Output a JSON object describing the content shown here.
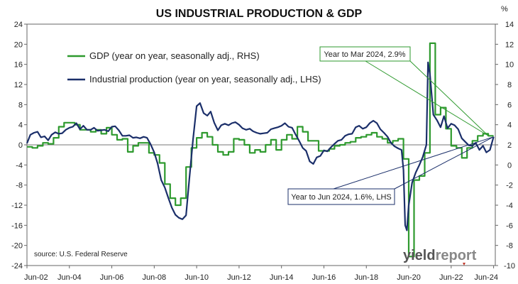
{
  "chart_data": {
    "type": "line",
    "title": "US INDUSTRIAL PRODUCTION & GDP",
    "right_unit": "%",
    "source": "source: U.S. Federal Reserve",
    "logo": {
      "part1": "yield",
      "part2": "report"
    },
    "x_tick_labels": [
      "Jun-02",
      "Jun-04",
      "Jun-06",
      "Jun-08",
      "Jun-10",
      "Jun-12",
      "Jun-14",
      "Jun-16",
      "Jun-18",
      "Jun-20",
      "Jun-22",
      "Jun-24"
    ],
    "xlim": [
      2002.42,
      2024.5
    ],
    "left_axis": {
      "ylim": [
        -24,
        24
      ],
      "ticks": [
        24,
        20,
        16,
        12,
        8,
        4,
        0,
        -4,
        -8,
        -12,
        -16,
        -20,
        -24
      ]
    },
    "right_axis": {
      "ylim": [
        -10,
        14
      ],
      "ticks": [
        14,
        12,
        10,
        8,
        6,
        4,
        2,
        0,
        -2,
        -4,
        -6,
        -8,
        -10
      ]
    },
    "grid": false,
    "legend_position": "top-left",
    "series": [
      {
        "name": "GDP (year on year, seasonally adj., RHS)",
        "axis": "right",
        "color": "#2e9a2e",
        "step": true,
        "x": [
          2002.42,
          2002.67,
          2002.92,
          2003.17,
          2003.42,
          2003.67,
          2003.92,
          2004.17,
          2004.42,
          2004.67,
          2004.92,
          2005.17,
          2005.42,
          2005.67,
          2005.92,
          2006.17,
          2006.42,
          2006.67,
          2006.92,
          2007.17,
          2007.42,
          2007.67,
          2007.92,
          2008.17,
          2008.42,
          2008.67,
          2008.92,
          2009.17,
          2009.42,
          2009.67,
          2009.92,
          2010.17,
          2010.42,
          2010.67,
          2010.92,
          2011.17,
          2011.42,
          2011.67,
          2011.92,
          2012.17,
          2012.42,
          2012.67,
          2012.92,
          2013.17,
          2013.42,
          2013.67,
          2013.92,
          2014.17,
          2014.42,
          2014.67,
          2014.92,
          2015.17,
          2015.42,
          2015.67,
          2015.92,
          2016.17,
          2016.42,
          2016.67,
          2016.92,
          2017.17,
          2017.42,
          2017.67,
          2017.92,
          2018.17,
          2018.42,
          2018.67,
          2018.92,
          2019.17,
          2019.42,
          2019.67,
          2019.92,
          2020.17,
          2020.42,
          2020.67,
          2020.92,
          2021.17,
          2021.42,
          2021.67,
          2021.92,
          2022.17,
          2022.42,
          2022.67,
          2022.92,
          2023.17,
          2023.42,
          2023.67,
          2023.92,
          2024.17
        ],
        "values": [
          1.8,
          1.7,
          1.9,
          2.2,
          2.1,
          2.7,
          3.8,
          4.2,
          4.2,
          4.0,
          3.5,
          3.5,
          3.3,
          3.5,
          3.1,
          3.7,
          3.0,
          2.5,
          2.6,
          1.3,
          1.9,
          2.2,
          2.2,
          1.2,
          1.0,
          0.2,
          -1.9,
          -3.3,
          -4.0,
          -3.3,
          -0.2,
          1.7,
          2.7,
          3.2,
          2.8,
          2.0,
          1.3,
          1.0,
          1.3,
          2.6,
          2.5,
          2.0,
          1.2,
          1.5,
          1.3,
          2.0,
          2.5,
          1.5,
          2.5,
          3.0,
          2.6,
          3.8,
          3.3,
          2.4,
          2.4,
          1.4,
          1.4,
          1.6,
          1.9,
          2.0,
          2.2,
          2.3,
          2.7,
          2.8,
          3.0,
          3.2,
          2.8,
          2.6,
          2.2,
          2.4,
          2.6,
          0.6,
          -9.1,
          -1.5,
          -1.1,
          1.2,
          12.1,
          5.0,
          5.7,
          3.6,
          1.9,
          1.7,
          0.7,
          1.7,
          2.4,
          2.9,
          3.1,
          2.9
        ]
      },
      {
        "name": "Industrial production (year on year, seasonally adj., LHS)",
        "axis": "left",
        "color": "#1b2f6a",
        "step": false,
        "x": [
          2002.42,
          2002.58,
          2002.75,
          2002.92,
          2003.08,
          2003.25,
          2003.42,
          2003.58,
          2003.75,
          2003.92,
          2004.08,
          2004.25,
          2004.42,
          2004.58,
          2004.75,
          2004.92,
          2005.08,
          2005.25,
          2005.42,
          2005.58,
          2005.75,
          2005.92,
          2006.08,
          2006.25,
          2006.42,
          2006.58,
          2006.75,
          2006.92,
          2007.08,
          2007.25,
          2007.42,
          2007.58,
          2007.75,
          2007.92,
          2008.08,
          2008.25,
          2008.42,
          2008.58,
          2008.75,
          2008.92,
          2009.08,
          2009.25,
          2009.42,
          2009.58,
          2009.75,
          2009.92,
          2010.08,
          2010.25,
          2010.42,
          2010.58,
          2010.75,
          2010.92,
          2011.08,
          2011.25,
          2011.42,
          2011.58,
          2011.75,
          2011.92,
          2012.08,
          2012.25,
          2012.42,
          2012.58,
          2012.75,
          2012.92,
          2013.08,
          2013.25,
          2013.42,
          2013.58,
          2013.75,
          2013.92,
          2014.08,
          2014.25,
          2014.42,
          2014.58,
          2014.75,
          2014.92,
          2015.08,
          2015.25,
          2015.42,
          2015.58,
          2015.75,
          2015.92,
          2016.08,
          2016.25,
          2016.42,
          2016.58,
          2016.75,
          2016.92,
          2017.08,
          2017.25,
          2017.42,
          2017.58,
          2017.75,
          2017.92,
          2018.08,
          2018.25,
          2018.42,
          2018.58,
          2018.75,
          2018.92,
          2019.08,
          2019.25,
          2019.42,
          2019.58,
          2019.75,
          2019.92,
          2020.08,
          2020.17,
          2020.25,
          2020.33,
          2020.42,
          2020.58,
          2020.75,
          2020.92,
          2021.08,
          2021.25,
          2021.33,
          2021.42,
          2021.58,
          2021.75,
          2021.92,
          2022.08,
          2022.25,
          2022.42,
          2022.58,
          2022.75,
          2022.92,
          2023.08,
          2023.25,
          2023.42,
          2023.58,
          2023.75,
          2023.92,
          2024.08,
          2024.25,
          2024.42
        ],
        "values": [
          0.3,
          2.0,
          2.4,
          2.6,
          1.5,
          1.7,
          0.9,
          2.0,
          2.5,
          2.2,
          2.3,
          3.0,
          3.4,
          3.6,
          4.3,
          3.1,
          3.8,
          3.0,
          3.0,
          3.4,
          2.8,
          2.9,
          3.0,
          2.7,
          3.6,
          3.7,
          2.9,
          1.8,
          1.8,
          1.9,
          1.4,
          1.5,
          1.3,
          1.6,
          1.4,
          0.1,
          -1.5,
          -3.7,
          -7.0,
          -8.5,
          -10.5,
          -12.5,
          -13.9,
          -14.5,
          -14.8,
          -14.0,
          -6.5,
          1.0,
          7.7,
          8.3,
          6.3,
          5.8,
          6.6,
          4.4,
          2.9,
          3.9,
          4.2,
          3.9,
          4.3,
          4.5,
          4.0,
          3.3,
          3.0,
          3.2,
          2.7,
          2.4,
          2.2,
          2.3,
          2.4,
          3.1,
          3.3,
          3.5,
          3.8,
          4.3,
          3.6,
          3.4,
          2.1,
          0.8,
          -0.6,
          -1.2,
          -3.3,
          -3.8,
          -2.5,
          -2.2,
          -1.1,
          -1.3,
          -0.5,
          0.2,
          0.8,
          1.0,
          1.8,
          2.1,
          2.2,
          3.5,
          3.8,
          3.2,
          3.5,
          4.3,
          4.8,
          4.3,
          3.1,
          2.4,
          1.6,
          0.4,
          -0.3,
          -0.7,
          -1.0,
          -5.0,
          -16.0,
          -17.0,
          -12.0,
          -7.5,
          -5.5,
          -4.0,
          -2.4,
          0.0,
          16.4,
          14.0,
          6.0,
          4.9,
          3.5,
          5.7,
          3.3,
          4.2,
          3.9,
          3.1,
          1.3,
          0.6,
          -0.1,
          -0.2,
          0.4,
          -1.0,
          -0.2,
          -1.5,
          -1.0,
          1.6
        ]
      }
    ],
    "annotations": [
      {
        "text": "Year to Mar 2024, 2.9%",
        "color": "#2e9a2e",
        "target_axis": "right",
        "target_x": 2024.17,
        "target_y": 2.9
      },
      {
        "text": "Year to Jun 2024, 1.6%, LHS",
        "color": "#1b2f6a",
        "target_axis": "left",
        "target_x": 2024.42,
        "target_y": 1.6
      }
    ]
  }
}
